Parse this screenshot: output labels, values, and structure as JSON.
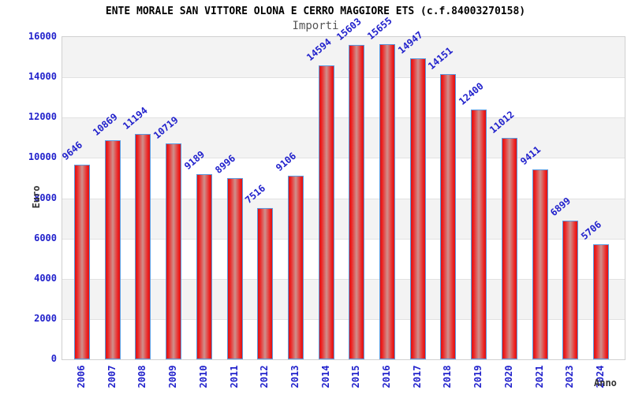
{
  "header": {
    "title": "ENTE MORALE SAN VITTORE OLONA E CERRO MAGGIORE ETS (c.f.84003270158)",
    "subtitle": "Importi"
  },
  "chart_data": {
    "type": "bar",
    "title": "ENTE MORALE SAN VITTORE OLONA E CERRO MAGGIORE ETS (c.f.84003270158)",
    "subtitle": "Importi",
    "xlabel": "Anno",
    "ylabel": "Euro",
    "categories": [
      "2006",
      "2007",
      "2008",
      "2009",
      "2010",
      "2011",
      "2012",
      "2013",
      "2014",
      "2015",
      "2016",
      "2017",
      "2018",
      "2019",
      "2020",
      "2021",
      "2023",
      "2024"
    ],
    "values": [
      9646,
      10869,
      11194,
      10719,
      9189,
      8996,
      7516,
      9106,
      14594,
      15603,
      15655,
      14947,
      14151,
      12400,
      11012,
      9411,
      6899,
      5706
    ],
    "ylim": [
      0,
      16000
    ],
    "yticks": [
      0,
      2000,
      4000,
      6000,
      8000,
      10000,
      12000,
      14000,
      16000
    ],
    "grid": true,
    "legend": null,
    "colors": {
      "bar_edge_border": "#5b9be0",
      "bar_red_dark": "#d91414",
      "bar_red_bright": "#ee2222",
      "bar_red_pale_center": "#cf908c",
      "value_label": "#2222cc",
      "tick_label": "#2222cc",
      "band_gray": "#f3f3f3",
      "band_white": "#ffffff",
      "grid_line": "#e2e2e2",
      "title_color": "#000000",
      "subtitle_color": "#555555",
      "axis_title_color": "#333333"
    }
  }
}
